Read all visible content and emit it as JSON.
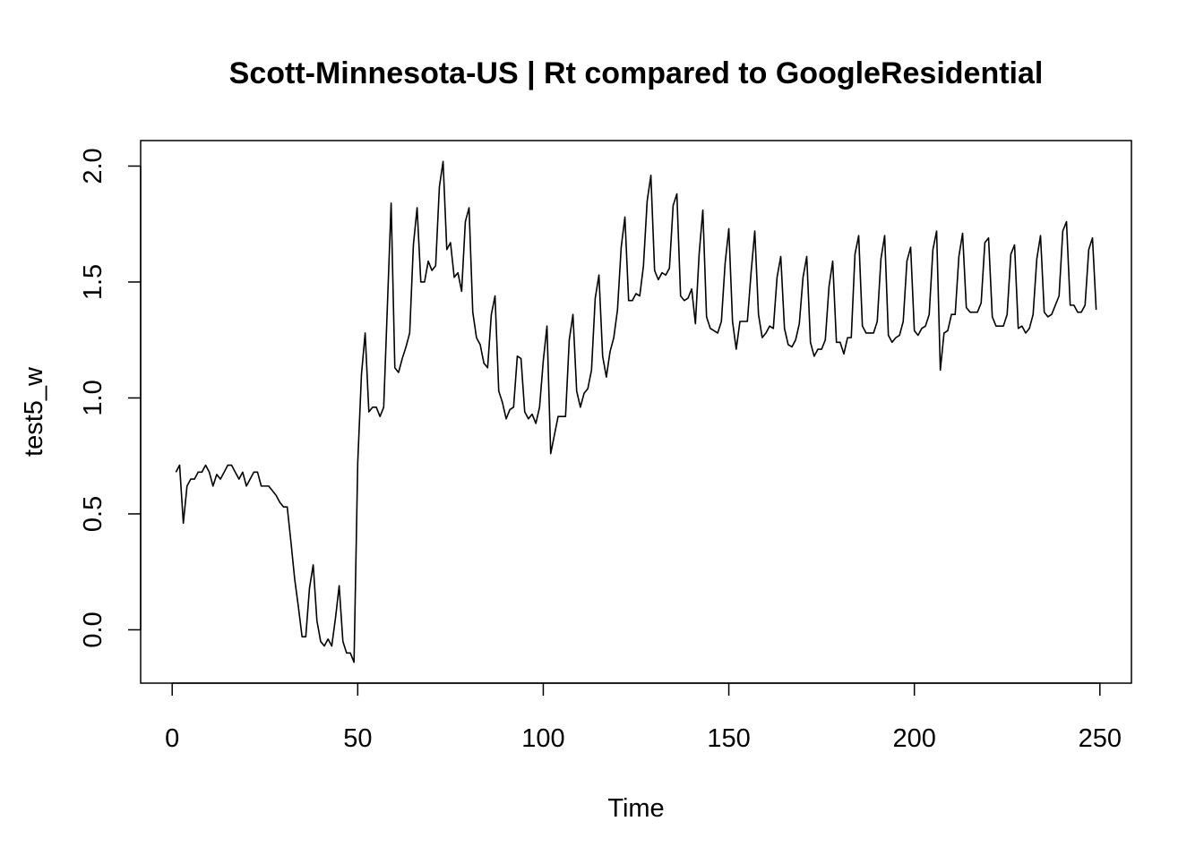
{
  "chart_data": {
    "type": "line",
    "title": "Scott-Minnesota-US | Rt compared to GoogleResidential",
    "xlabel": "Time",
    "ylabel": "test5_w",
    "xlim": [
      -8.5,
      258.5
    ],
    "ylim": [
      -0.23,
      2.11
    ],
    "x_ticks": [
      0,
      50,
      100,
      150,
      200,
      250
    ],
    "y_ticks": [
      0.0,
      0.5,
      1.0,
      1.5,
      2.0
    ],
    "x_tick_labels": [
      "0",
      "50",
      "100",
      "150",
      "200",
      "250"
    ],
    "y_tick_labels": [
      "0.0",
      "0.5",
      "1.0",
      "1.5",
      "2.0"
    ],
    "grid": false,
    "line_color": "#000000",
    "series": [
      {
        "x_start": 1,
        "x_step": 1,
        "values": [
          0.68,
          0.71,
          0.46,
          0.62,
          0.65,
          0.65,
          0.68,
          0.68,
          0.71,
          0.68,
          0.62,
          0.67,
          0.65,
          0.68,
          0.71,
          0.71,
          0.68,
          0.65,
          0.68,
          0.62,
          0.65,
          0.68,
          0.68,
          0.62,
          0.62,
          0.62,
          0.6,
          0.58,
          0.55,
          0.53,
          0.53,
          0.38,
          0.22,
          0.1,
          -0.03,
          -0.03,
          0.18,
          0.28,
          0.04,
          -0.05,
          -0.07,
          -0.04,
          -0.07,
          0.05,
          0.19,
          -0.05,
          -0.1,
          -0.1,
          -0.14,
          0.72,
          1.1,
          1.28,
          0.94,
          0.96,
          0.96,
          0.92,
          0.96,
          1.4,
          1.84,
          1.13,
          1.11,
          1.17,
          1.22,
          1.28,
          1.66,
          1.82,
          1.5,
          1.5,
          1.59,
          1.55,
          1.57,
          1.91,
          2.02,
          1.64,
          1.67,
          1.52,
          1.54,
          1.46,
          1.76,
          1.82,
          1.37,
          1.26,
          1.23,
          1.15,
          1.13,
          1.36,
          1.44,
          1.03,
          0.98,
          0.91,
          0.95,
          0.96,
          1.18,
          1.17,
          0.94,
          0.91,
          0.93,
          0.89,
          0.96,
          1.16,
          1.31,
          0.76,
          0.84,
          0.92,
          0.92,
          0.92,
          1.25,
          1.36,
          1.03,
          0.96,
          1.02,
          1.04,
          1.12,
          1.43,
          1.53,
          1.18,
          1.09,
          1.2,
          1.26,
          1.38,
          1.65,
          1.78,
          1.42,
          1.42,
          1.45,
          1.44,
          1.57,
          1.85,
          1.96,
          1.55,
          1.51,
          1.54,
          1.53,
          1.56,
          1.83,
          1.88,
          1.44,
          1.42,
          1.43,
          1.47,
          1.32,
          1.62,
          1.81,
          1.35,
          1.3,
          1.29,
          1.28,
          1.33,
          1.58,
          1.73,
          1.33,
          1.21,
          1.33,
          1.33,
          1.33,
          1.54,
          1.72,
          1.36,
          1.26,
          1.28,
          1.31,
          1.3,
          1.52,
          1.61,
          1.3,
          1.23,
          1.22,
          1.25,
          1.32,
          1.52,
          1.61,
          1.24,
          1.18,
          1.21,
          1.21,
          1.25,
          1.48,
          1.59,
          1.24,
          1.24,
          1.19,
          1.26,
          1.26,
          1.62,
          1.7,
          1.31,
          1.28,
          1.28,
          1.28,
          1.33,
          1.6,
          1.7,
          1.27,
          1.24,
          1.26,
          1.27,
          1.33,
          1.59,
          1.65,
          1.29,
          1.27,
          1.3,
          1.31,
          1.36,
          1.64,
          1.72,
          1.12,
          1.28,
          1.29,
          1.36,
          1.36,
          1.61,
          1.71,
          1.39,
          1.37,
          1.37,
          1.37,
          1.41,
          1.67,
          1.69,
          1.35,
          1.31,
          1.31,
          1.31,
          1.36,
          1.62,
          1.66,
          1.3,
          1.31,
          1.28,
          1.3,
          1.36,
          1.6,
          1.7,
          1.37,
          1.35,
          1.36,
          1.4,
          1.44,
          1.72,
          1.76,
          1.4,
          1.4,
          1.37,
          1.37,
          1.4,
          1.64,
          1.69,
          1.38
        ]
      }
    ]
  }
}
